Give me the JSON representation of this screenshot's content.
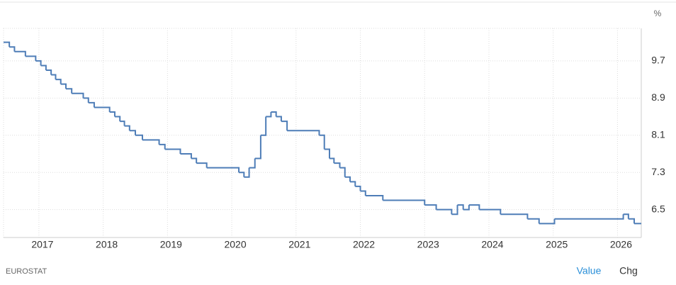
{
  "chart_data": {
    "type": "step-line",
    "unit_label": "%",
    "source": "EUROSTAT",
    "buttons": [
      "Value",
      "Chg"
    ],
    "xlim": [
      2016.45,
      2026.37
    ],
    "xticks": [
      2017,
      2018,
      2019,
      2020,
      2021,
      2022,
      2023,
      2024,
      2025,
      2026
    ],
    "ylim": [
      5.9,
      10.4
    ],
    "yticks": [
      6.5,
      7.3,
      8.1,
      8.9,
      9.7
    ],
    "grid": true,
    "series": [
      {
        "color": "#4e7db7",
        "x": [
          2016.45,
          2016.54,
          2016.62,
          2016.79,
          2016.95,
          2017.03,
          2017.11,
          2017.19,
          2017.26,
          2017.34,
          2017.42,
          2017.51,
          2017.69,
          2017.77,
          2017.86,
          2018.1,
          2018.18,
          2018.26,
          2018.33,
          2018.41,
          2018.5,
          2018.61,
          2018.87,
          2018.96,
          2019.2,
          2019.37,
          2019.45,
          2019.61,
          2020.11,
          2020.19,
          2020.27,
          2020.36,
          2020.45,
          2020.53,
          2020.61,
          2020.69,
          2020.77,
          2020.86,
          2021.36,
          2021.44,
          2021.52,
          2021.59,
          2021.68,
          2021.76,
          2021.84,
          2021.92,
          2022.0,
          2022.08,
          2022.35,
          2023.0,
          2023.18,
          2023.42,
          2023.51,
          2023.6,
          2023.69,
          2023.85,
          2024.18,
          2024.6,
          2024.78,
          2025.02,
          2026.09,
          2026.17,
          2026.26
        ],
        "values": [
          10.1,
          10.0,
          9.9,
          9.8,
          9.7,
          9.6,
          9.5,
          9.4,
          9.3,
          9.2,
          9.1,
          9.0,
          8.9,
          8.8,
          8.7,
          8.6,
          8.5,
          8.4,
          8.3,
          8.2,
          8.1,
          8.0,
          7.9,
          7.8,
          7.7,
          7.6,
          7.5,
          7.4,
          7.3,
          7.2,
          7.4,
          7.6,
          8.1,
          8.5,
          8.6,
          8.5,
          8.4,
          8.2,
          8.1,
          7.8,
          7.6,
          7.5,
          7.4,
          7.2,
          7.1,
          7.0,
          6.9,
          6.8,
          6.7,
          6.6,
          6.5,
          6.4,
          6.6,
          6.5,
          6.6,
          6.5,
          6.4,
          6.3,
          6.2,
          6.3,
          6.4,
          6.3,
          6.2
        ]
      }
    ]
  }
}
